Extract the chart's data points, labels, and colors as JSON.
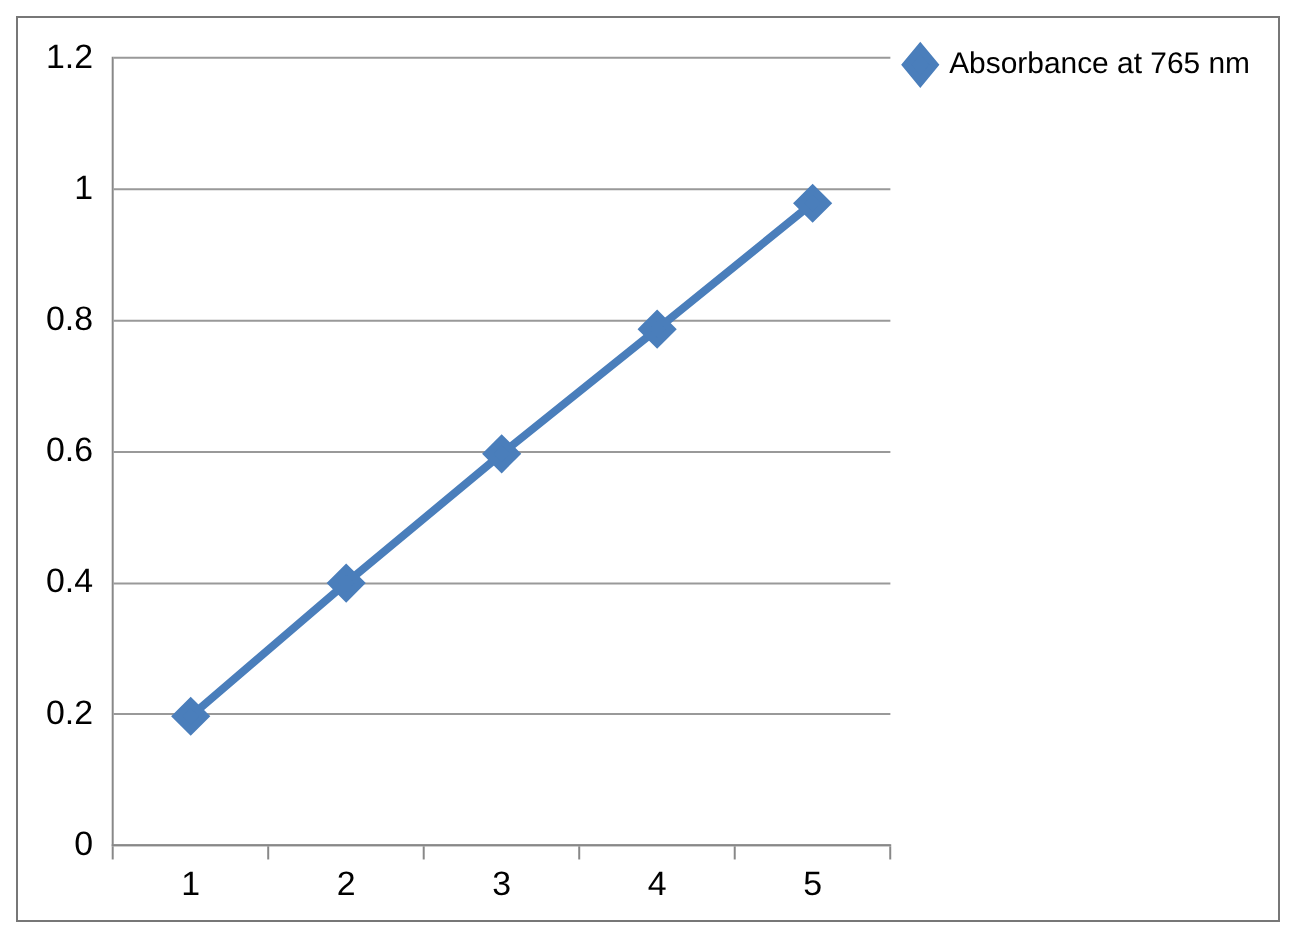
{
  "chart_data": {
    "type": "line",
    "categories": [
      "1",
      "2",
      "3",
      "4",
      "5"
    ],
    "series": [
      {
        "name": "Absorbance at 765 nm",
        "color": "#4a7ebb",
        "values": [
          0.197,
          0.4,
          0.597,
          0.787,
          0.979
        ]
      }
    ],
    "ylim": [
      0,
      1.2
    ],
    "yticks": [
      0,
      0.2,
      0.4,
      0.6,
      0.8,
      1,
      1.2
    ],
    "grid": "y",
    "legend": "top right",
    "marker": "diamond",
    "line_style": "solid"
  }
}
